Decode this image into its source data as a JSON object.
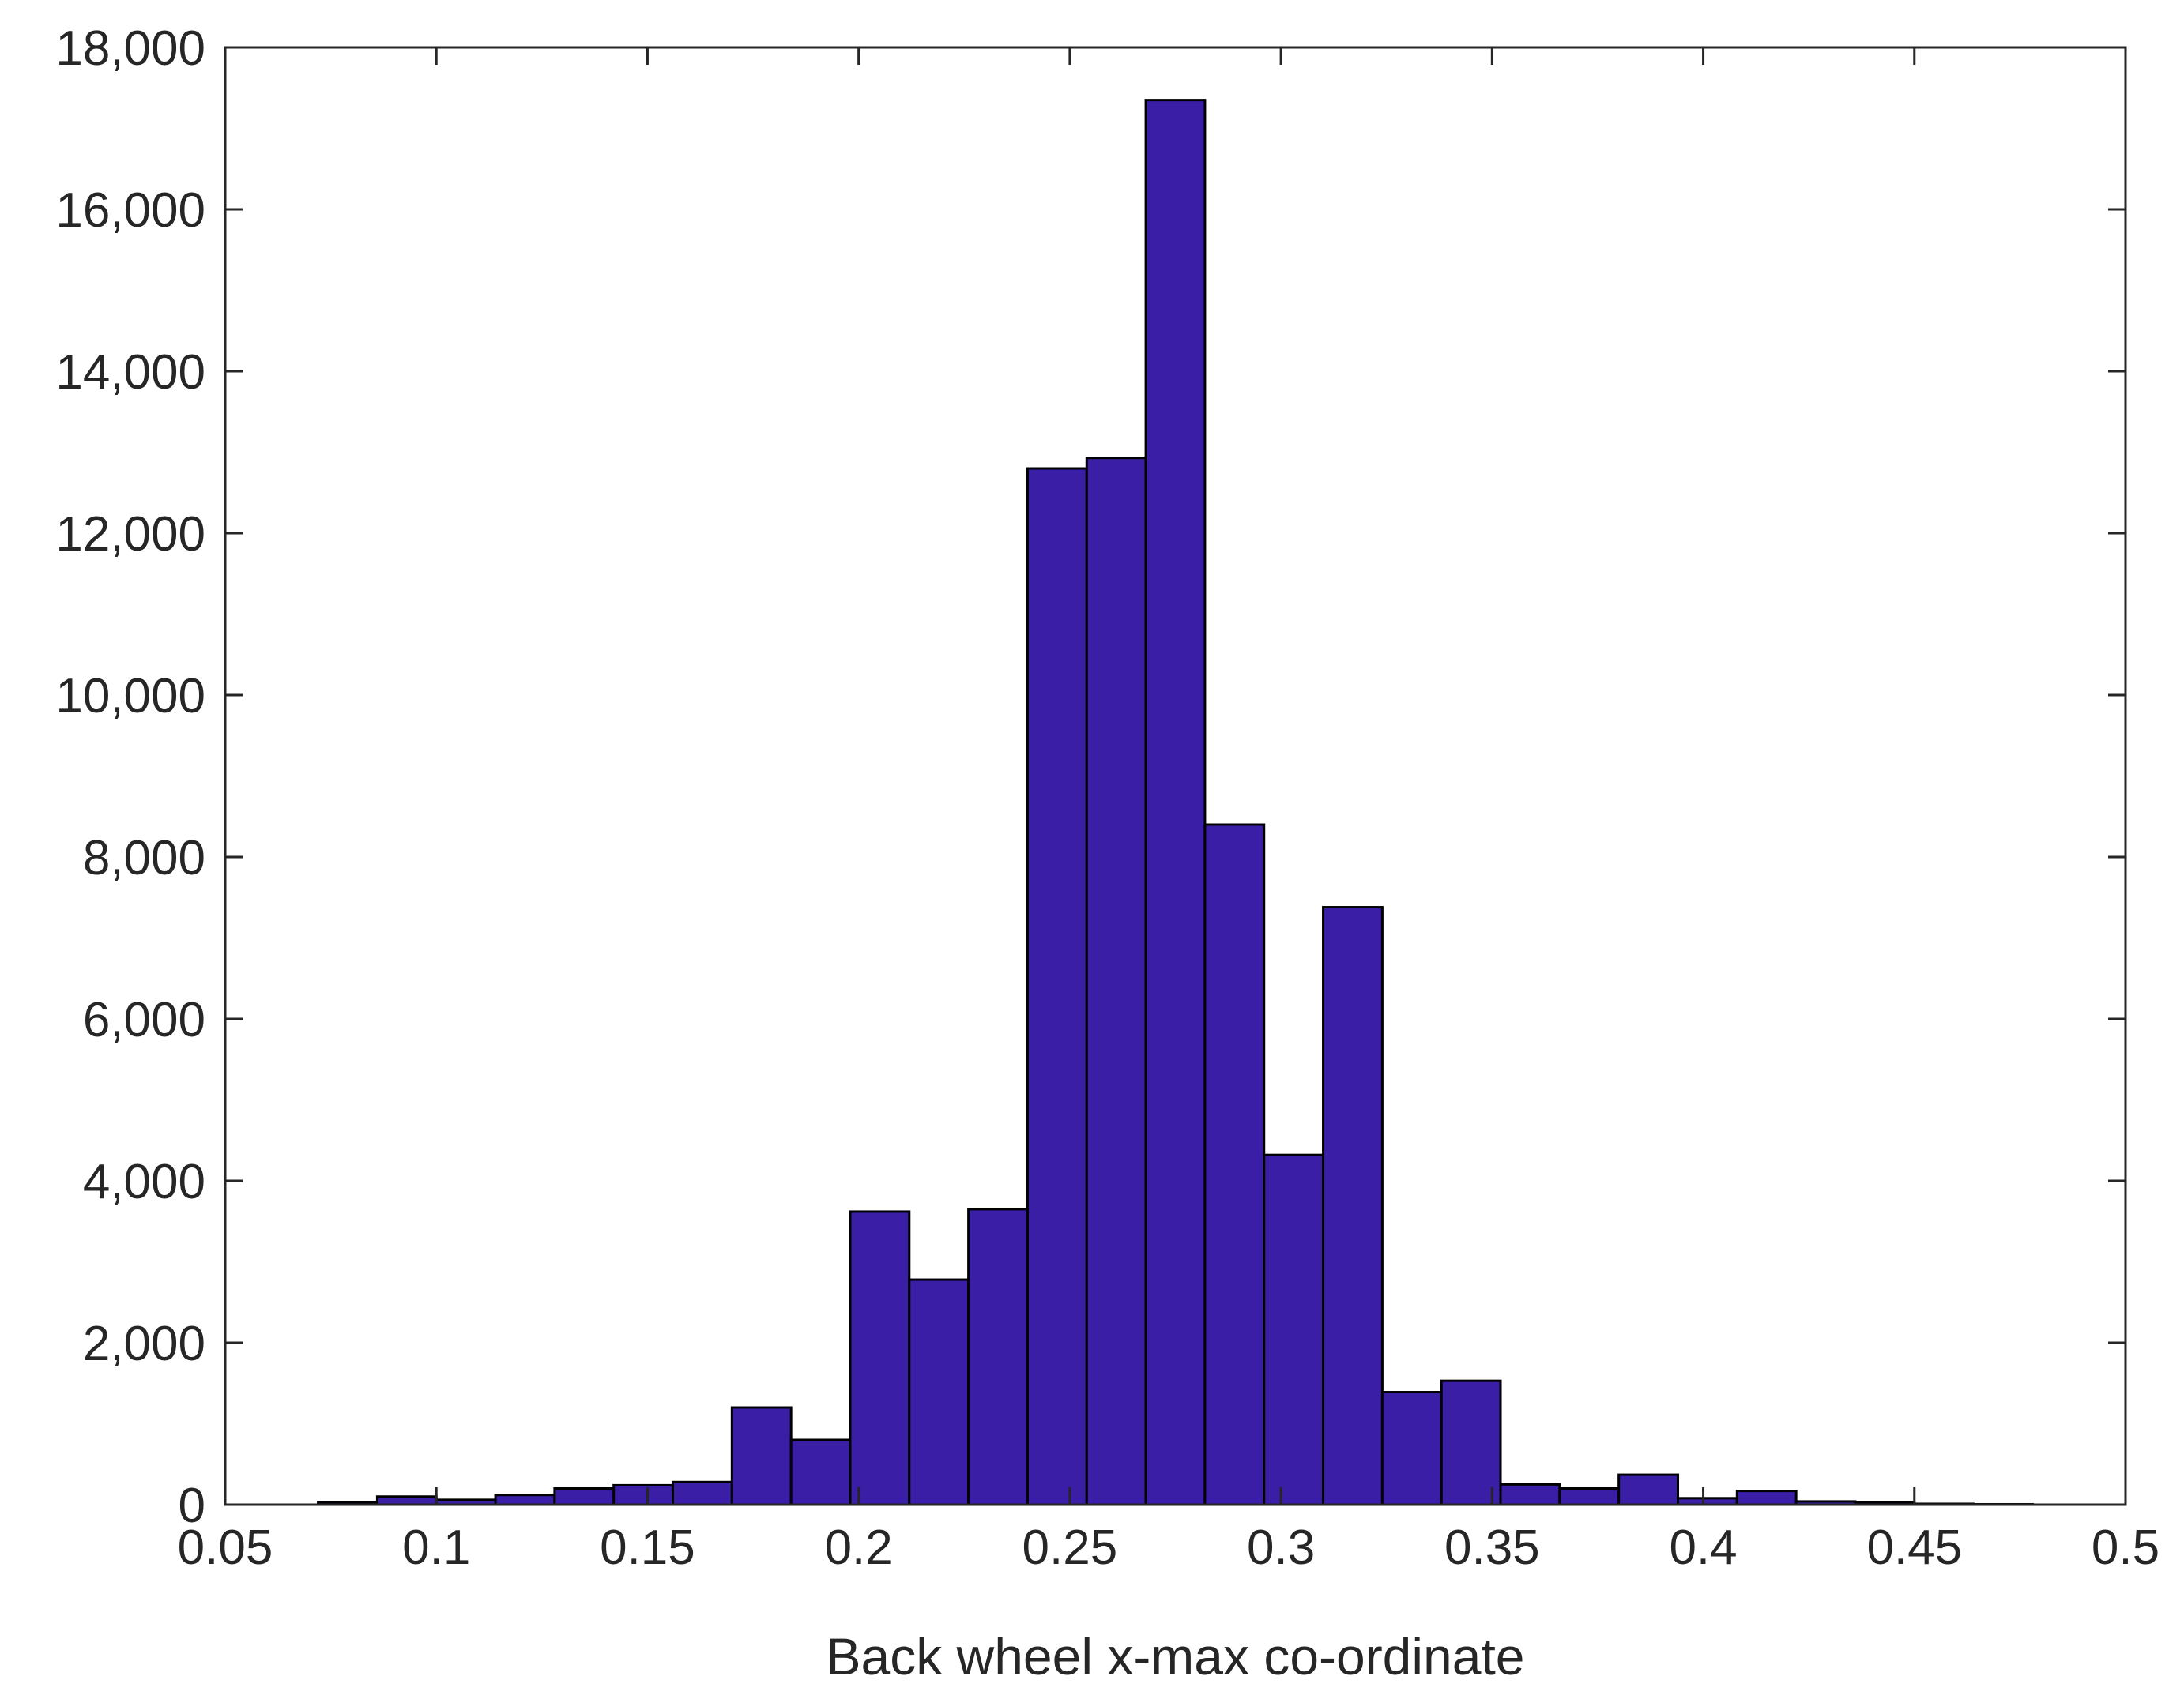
{
  "chart_data": {
    "type": "bar",
    "subtype": "histogram",
    "title": "",
    "xlabel": "Back wheel x-max co-ordinate",
    "ylabel": "",
    "xlim": [
      0.05,
      0.5
    ],
    "ylim": [
      0,
      18000
    ],
    "xticks": [
      0.05,
      0.1,
      0.15,
      0.2,
      0.25,
      0.3,
      0.35,
      0.4,
      0.45,
      0.5
    ],
    "xtick_labels": [
      "0.05",
      "0.1",
      "0.15",
      "0.2",
      "0.25",
      "0.3",
      "0.35",
      "0.4",
      "0.45",
      "0.5"
    ],
    "yticks": [
      0,
      2000,
      4000,
      6000,
      8000,
      10000,
      12000,
      14000,
      16000,
      18000
    ],
    "ytick_labels": [
      "0",
      "2,000",
      "4,000",
      "6,000",
      "8,000",
      "10,000",
      "12,000",
      "14,000",
      "16,000",
      "18,000"
    ],
    "grid": false,
    "bar_color": "#3a1fa6",
    "bin_edges": [
      0.072,
      0.086,
      0.1,
      0.114,
      0.128,
      0.142,
      0.156,
      0.17,
      0.184,
      0.198,
      0.212,
      0.226,
      0.24,
      0.254,
      0.268,
      0.282,
      0.296,
      0.31,
      0.324,
      0.338,
      0.352,
      0.366,
      0.38,
      0.394,
      0.408,
      0.422,
      0.436,
      0.45,
      0.464,
      0.478
    ],
    "values": [
      30,
      100,
      60,
      120,
      200,
      240,
      280,
      1200,
      800,
      3620,
      2780,
      3650,
      12800,
      12930,
      17350,
      8400,
      4320,
      7380,
      1390,
      1530,
      250,
      200,
      370,
      80,
      170,
      40,
      30,
      10,
      5
    ]
  }
}
